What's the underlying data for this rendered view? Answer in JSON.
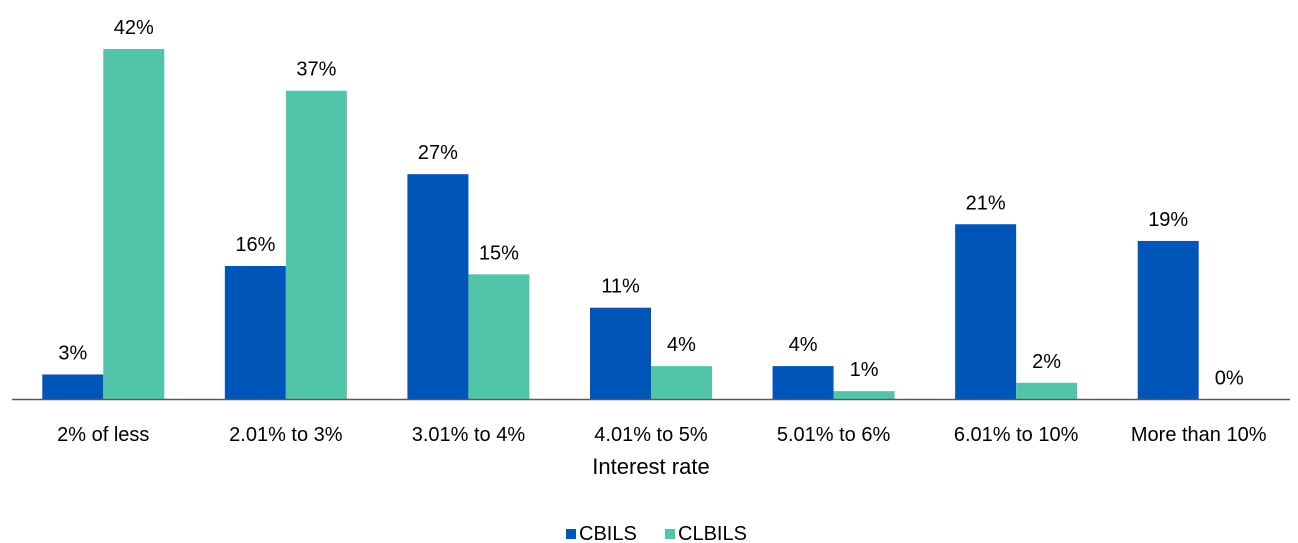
{
  "chart_data": {
    "type": "bar",
    "title": "",
    "xlabel": "Interest rate",
    "ylabel": "",
    "ylim": [
      0,
      45
    ],
    "grid": false,
    "legend_position": "bottom",
    "categories": [
      "2% of less",
      "2.01% to 3%",
      "3.01% to 4%",
      "4.01% to 5%",
      "5.01% to 6%",
      "6.01% to 10%",
      "More than 10%"
    ],
    "series": [
      {
        "name": "CBILS",
        "color": "#0055b8",
        "values": [
          3,
          16,
          27,
          11,
          4,
          21,
          19
        ],
        "labels": [
          "3%",
          "16%",
          "27%",
          "11%",
          "4%",
          "21%",
          "19%"
        ]
      },
      {
        "name": "CLBILS",
        "color": "#52c5a8",
        "values": [
          42,
          37,
          15,
          4,
          1,
          2,
          0
        ],
        "labels": [
          "42%",
          "37%",
          "15%",
          "4%",
          "1%",
          "2%",
          "0%"
        ]
      }
    ]
  }
}
